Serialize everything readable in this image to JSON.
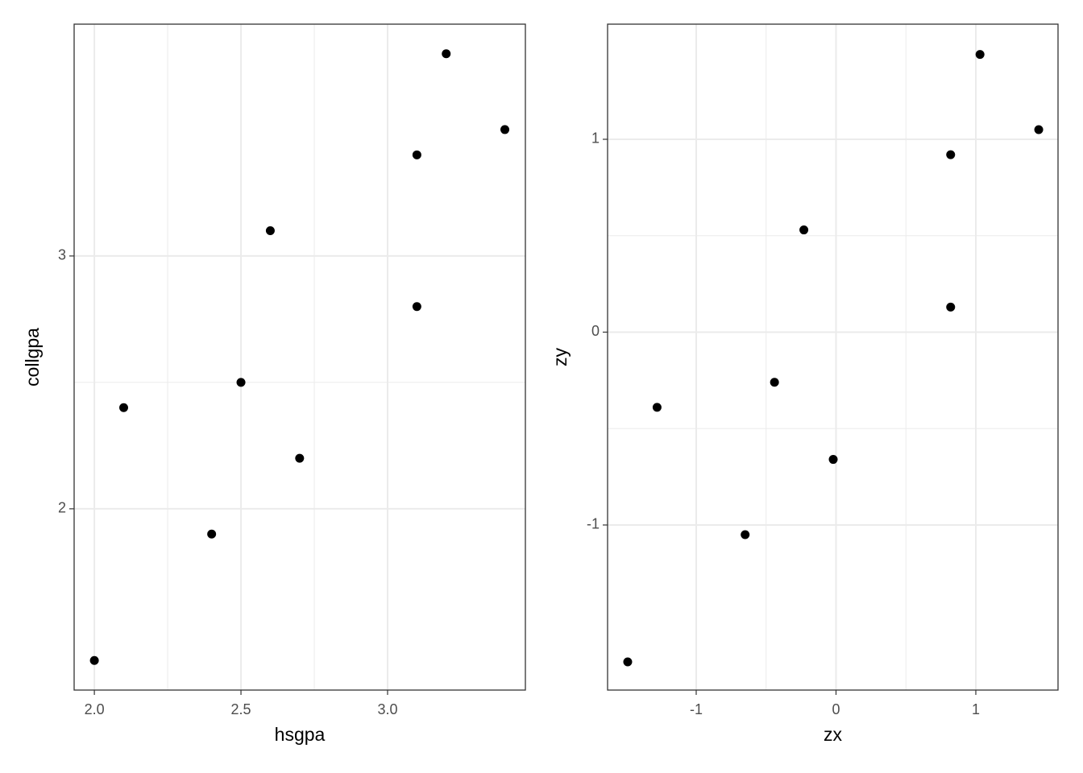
{
  "chart_data": [
    {
      "type": "scatter",
      "x_label": "hsgpa",
      "y_label": "collgpa",
      "color": "#000000",
      "grid": true,
      "minor_grid": true,
      "x": [
        2.0,
        2.1,
        2.4,
        2.5,
        2.6,
        2.7,
        3.1,
        3.1,
        3.2,
        3.4
      ],
      "values": [
        1.4,
        2.4,
        1.9,
        2.5,
        3.1,
        2.2,
        2.8,
        3.4,
        3.8,
        3.5
      ],
      "xlim": [
        1.931,
        3.47
      ],
      "ylim": [
        1.283,
        3.917
      ],
      "xticks": [
        {
          "value": 2.0,
          "label": "2.0"
        },
        {
          "value": 2.5,
          "label": "2.5"
        },
        {
          "value": 3.0,
          "label": "3.0"
        }
      ],
      "yticks": [
        2,
        3
      ]
    },
    {
      "type": "scatter",
      "x_label": "zx",
      "y_label": "zy",
      "color": "#000000",
      "grid": true,
      "minor_grid": true,
      "x": [
        -1.49,
        -1.28,
        -0.65,
        -0.44,
        -0.23,
        -0.02,
        0.82,
        0.82,
        1.03,
        1.45
      ],
      "values": [
        -1.71,
        -0.39,
        -1.05,
        -0.26,
        0.53,
        -0.66,
        0.13,
        0.92,
        1.44,
        1.05
      ],
      "xlim": [
        -1.634,
        1.588
      ],
      "ylim": [
        -1.856,
        1.597
      ],
      "xticks": [
        -1,
        0,
        1
      ],
      "yticks": [
        -1,
        0,
        1
      ]
    }
  ]
}
